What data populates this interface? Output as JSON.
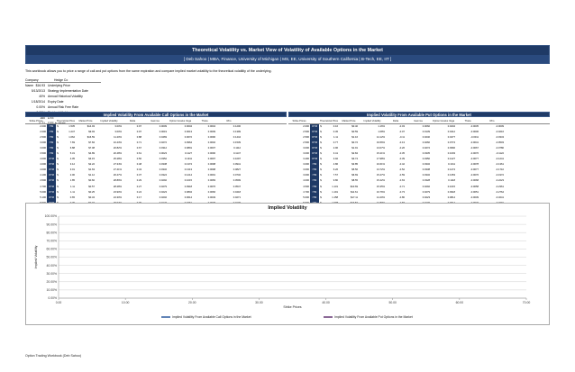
{
  "banner": {
    "title": "Theoretical Volatility vs. Market View of Volatility of Available Options in the Market",
    "subtitle": "[ Deb Sahoo | MBA, Finance, University of Michigan | MS, EE, University of Southern California | B-Tech, EE, IIT ]"
  },
  "intro": "This workbook allows you to price a range of call and put options from the same expiration and compare implied market volatility to the theoretical volatility of the underlying.",
  "company_panel": {
    "header_label": "Company Name",
    "header_value": "Hedge Co",
    "rows": [
      {
        "value": "$16.93",
        "label": "Underlying Price"
      },
      {
        "value": "5/13/2013",
        "label": "Strategy Implementation Date"
      },
      {
        "value": "40%",
        "label": "Annual Historical Volatility"
      },
      {
        "value": "1/18/2014",
        "label": "Expiry Date"
      },
      {
        "value": "0.00%",
        "label": "Annual Risk Free Rate"
      },
      {
        "value": "0.00%",
        "label": "Dividend Yield"
      },
      {
        "value": "160",
        "label": "DTE"
      },
      {
        "value": "0.71",
        "label": "DTE in Years"
      }
    ]
  },
  "calls": {
    "title": "Implied Volatility From Available Call Options in the Market",
    "headers": [
      "Strike Prices",
      "",
      "Theoretical Price",
      "Market Price",
      "Implied Volatility",
      "Delta",
      "Gamma",
      "Option Greeks Vega",
      "Theta",
      "Rho"
    ],
    "rows": [
      [
        "2.000",
        "ITM",
        "$",
        "1.535",
        "$14.93",
        "3.00%",
        "0.97",
        "0.0009",
        "0.0004",
        "0.0004",
        "0.1200"
      ],
      [
        "2.000",
        "ITM",
        "$",
        "1.247",
        "$9.93",
        "3.00%",
        "0.97",
        "0.0019",
        "0.0013",
        "0.0009",
        "0.1399"
      ],
      [
        "2.500",
        "ITM",
        "$",
        "1.062",
        "$16.59",
        "11.20%",
        "0.88",
        "0.0469",
        "0.0072",
        "0.0090",
        "0.1444"
      ],
      [
        "3.000",
        "ITM",
        "$",
        "7.69",
        "$7.84",
        "10.43%",
        "0.71",
        "0.0272",
        "0.0964",
        "0.0002",
        "0.1539"
      ],
      [
        "3.000",
        "ITM",
        "$",
        "6.88",
        "$7.08",
        "20.82%",
        "0.67",
        "0.0312",
        "0.0891",
        "0.0007",
        "0.1112"
      ],
      [
        "3.500",
        "ITM",
        "$",
        "5.31",
        "$4.89",
        "20.48%",
        "0.61",
        "0.0023",
        "0.1127",
        "0.0090",
        "0.1147"
      ],
      [
        "4.000",
        "OTM",
        "$",
        "4.05",
        "$3.15",
        "25.28%",
        "0.50",
        "0.0352",
        "0.1311",
        "0.0097",
        "0.1097"
      ],
      [
        "4.000",
        "OTM",
        "$",
        "3.12",
        "$2.22",
        "27.34%",
        "0.48",
        "0.0338",
        "0.1374",
        "0.0098",
        "0.0941"
      ],
      [
        "4.000",
        "OTM",
        "$",
        "3.01",
        "$1.63",
        "27.41%",
        "0.43",
        "0.0332",
        "0.1313",
        "0.0098",
        "0.0827"
      ],
      [
        "4.100",
        "OTM",
        "$",
        "2.00",
        "$1.12",
        "26.47%",
        "0.37",
        "0.0324",
        "0.1214",
        "0.0091",
        "0.0732"
      ],
      [
        "4.500",
        "OTM",
        "$",
        "1.85",
        "$0.82",
        "28.89%",
        "0.29",
        "0.0292",
        "0.1015",
        "0.0083",
        "0.0599"
      ],
      [
        "4.700",
        "OTM",
        "$",
        "1.11",
        "$0.57",
        "28.28%",
        "0.27",
        "0.0279",
        "0.0918",
        "0.0076",
        "0.0547"
      ],
      [
        "5.000",
        "OTM",
        "$",
        "1.11",
        "$0.25",
        "23.90%",
        "0.24",
        "0.0223",
        "0.0804",
        "0.0066",
        "0.0418"
      ],
      [
        "5.100",
        "OTM",
        "$",
        "0.65",
        "$0.34",
        "24.30%",
        "0.17",
        "0.0202",
        "0.0614",
        "0.0049",
        "0.0271"
      ],
      [
        "5.500",
        "OTM",
        "$",
        "0.30",
        "$0.04",
        "29.92%",
        "0.09",
        "0.0123",
        "0.0461",
        "0.0036",
        "0.0176"
      ],
      [
        "6.000",
        "OTM",
        "$",
        "0.08",
        "$0.04",
        "29.92%",
        "0.09",
        "0.0123",
        "0.0461",
        "0.0036",
        "0.0176"
      ],
      [
        "6.000",
        "OTM",
        "$",
        "0.08",
        "$0.04",
        "29.92%",
        "0.09",
        "0.0123",
        "0.0461",
        "0.0036",
        "0.0176"
      ],
      [
        "6.000",
        "OTM",
        "$",
        "0.08",
        "$0.04",
        "29.92%",
        "0.09",
        "0.0123",
        "0.0461",
        "0.0036",
        "0.0176"
      ],
      [
        "6.000",
        "OTM",
        "$",
        "0.08",
        "$0.04",
        "29.92%",
        "0.09",
        "0.0123",
        "0.0461",
        "0.0036",
        "0.0176"
      ],
      [
        "6.000",
        "OTM",
        "$",
        "0.08",
        "$0.04",
        "29.92%",
        "0.09",
        "0.0123",
        "0.0461",
        "0.0036",
        "0.0176"
      ]
    ]
  },
  "puts": {
    "title": "Implied Volatility From Available Put Options in the Market",
    "headers": [
      "Strike Prices",
      "",
      "Theoretical Price",
      "Market Price",
      "Implied Volatility",
      "Delta",
      "Gamma",
      "Option Greeks Vega",
      "Theta",
      "Rho"
    ],
    "rows": [
      [
        "2.000",
        "OTM",
        "$",
        "0.16",
        "$0.40",
        "1.16%",
        "-0.03",
        "0.0060",
        "0.0204",
        "-0.0035",
        "-0.0009"
      ],
      [
        "2.500",
        "OTM",
        "$",
        "0.45",
        "$0.59",
        "1.08%",
        "-0.07",
        "0.0139",
        "0.0412",
        "-0.0006",
        "-0.0216"
      ],
      [
        "2.500",
        "OTM",
        "$",
        "1.11",
        "$1.16",
        "14.12%",
        "-0.11",
        "0.0240",
        "0.0477",
        "-0.0011",
        "-0.0343"
      ],
      [
        "2.500",
        "OTM",
        "$",
        "0.77",
        "$0.72",
        "19.56%",
        "-0.13",
        "0.0260",
        "0.0774",
        "-0.0041",
        "-0.0503"
      ],
      [
        "3.000",
        "OTM",
        "$",
        "2.96",
        "$1.91",
        "13.07%",
        "-0.26",
        "0.0272",
        "0.0966",
        "-0.0067",
        "-0.0780"
      ],
      [
        "3.000",
        "OTM",
        "$",
        "3.41",
        "$2.84",
        "15.21%",
        "-0.35",
        "0.0335",
        "0.1093",
        "-0.0076",
        "-0.1122"
      ],
      [
        "3.400",
        "OTM",
        "$",
        "3.92",
        "$3.74",
        "17.98%",
        "-0.39",
        "0.0350",
        "0.1227",
        "-0.0077",
        "-0.1241"
      ],
      [
        "3.600",
        "ITM",
        "$",
        "4.86",
        "$3.85",
        "16.61%",
        "-0.42",
        "0.0332",
        "0.1311",
        "-0.0078",
        "-0.1361"
      ],
      [
        "3.600",
        "ITM",
        "$",
        "6.26",
        "$5.56",
        "13.72%",
        "-0.52",
        "0.0338",
        "0.1274",
        "-0.0077",
        "-0.1710"
      ],
      [
        "3.600",
        "ITM",
        "$",
        "7.57",
        "$6.69",
        "15.47%",
        "-0.59",
        "0.0332",
        "0.1353",
        "-0.0076",
        "-0.1972"
      ],
      [
        "4.000",
        "ITM",
        "$",
        "9.80",
        "$8.55",
        "15.42%",
        "-0.63",
        "0.0328",
        "0.1118",
        "-0.0068",
        "-0.2223"
      ],
      [
        "4.500",
        "ITM",
        "$",
        "1.131",
        "$10.69",
        "15.35%",
        "-0.71",
        "0.0292",
        "0.1015",
        "-0.0058",
        "-0.2361"
      ],
      [
        "4.700",
        "ITM",
        "$",
        "1.191",
        "$11.61",
        "16.76%",
        "-0.73",
        "0.0279",
        "0.0918",
        "-0.0051",
        "-0.2764"
      ],
      [
        "5.000",
        "ITM",
        "$",
        "1.158",
        "$17.11",
        "14.40%",
        "-0.80",
        "0.0223",
        "0.0814",
        "-0.0039",
        "-0.3241"
      ],
      [
        "5.500",
        "ITM",
        "$",
        "1.998",
        "$23.53",
        "12.80%",
        "-0.87",
        "0.0176",
        "0.0614",
        "-0.0040",
        "-0.3291"
      ],
      [
        "6.000",
        "ITM",
        "$",
        "2.444",
        "$28.00",
        "17.95%",
        "-0.92",
        "0.0148",
        "0.0461",
        "-0.0003",
        "-0.4410"
      ],
      [
        "6.000",
        "ITM",
        "$",
        "2.444",
        "$28.00",
        "17.95%",
        "-0.92",
        "0.0148",
        "0.0461",
        "-0.0003",
        "-0.4410"
      ],
      [
        "6.000",
        "ITM",
        "$",
        "2.444",
        "$28.00",
        "17.95%",
        "-0.92",
        "0.0148",
        "0.0461",
        "-0.0003",
        "-0.4410"
      ],
      [
        "6.000",
        "ITM",
        "$",
        "2.444",
        "$28.00",
        "17.95%",
        "-0.92",
        "0.0148",
        "0.0461",
        "-0.0003",
        "-0.4410"
      ],
      [
        "6.000",
        "ITM",
        "$",
        "2.444",
        "$28.00",
        "17.95%",
        "-0.92",
        "0.0148",
        "0.0461",
        "-0.0003",
        "-0.4410"
      ]
    ]
  },
  "chart_data": {
    "type": "line",
    "title": "Implied Volatility",
    "xlabel": "Strike Prices",
    "ylabel": "Implied Volatility",
    "xlim": [
      0,
      7000
    ],
    "ylim": [
      0,
      1.0
    ],
    "xticks": [
      "0.00",
      "10.00",
      "20.00",
      "30.00",
      "40.00",
      "50.00",
      "60.00",
      "70.00"
    ],
    "yticks": [
      "0.00%",
      "10.00%",
      "20.00%",
      "30.00%",
      "40.00%",
      "50.00%",
      "60.00%",
      "70.00%",
      "80.00%",
      "90.00%",
      "100.00%"
    ],
    "grid": true,
    "legend_position": "bottom",
    "series": [
      {
        "name": "Implied Volatility From Available Call Options in the Market",
        "color": "#1f4e96",
        "x": [],
        "y": []
      },
      {
        "name": "Implied Volatility From Available Put Options in the Market",
        "color": "#5a2a6a",
        "x": [],
        "y": []
      }
    ]
  },
  "footer": "Option Trading Workbook (Deb Sahoo)"
}
